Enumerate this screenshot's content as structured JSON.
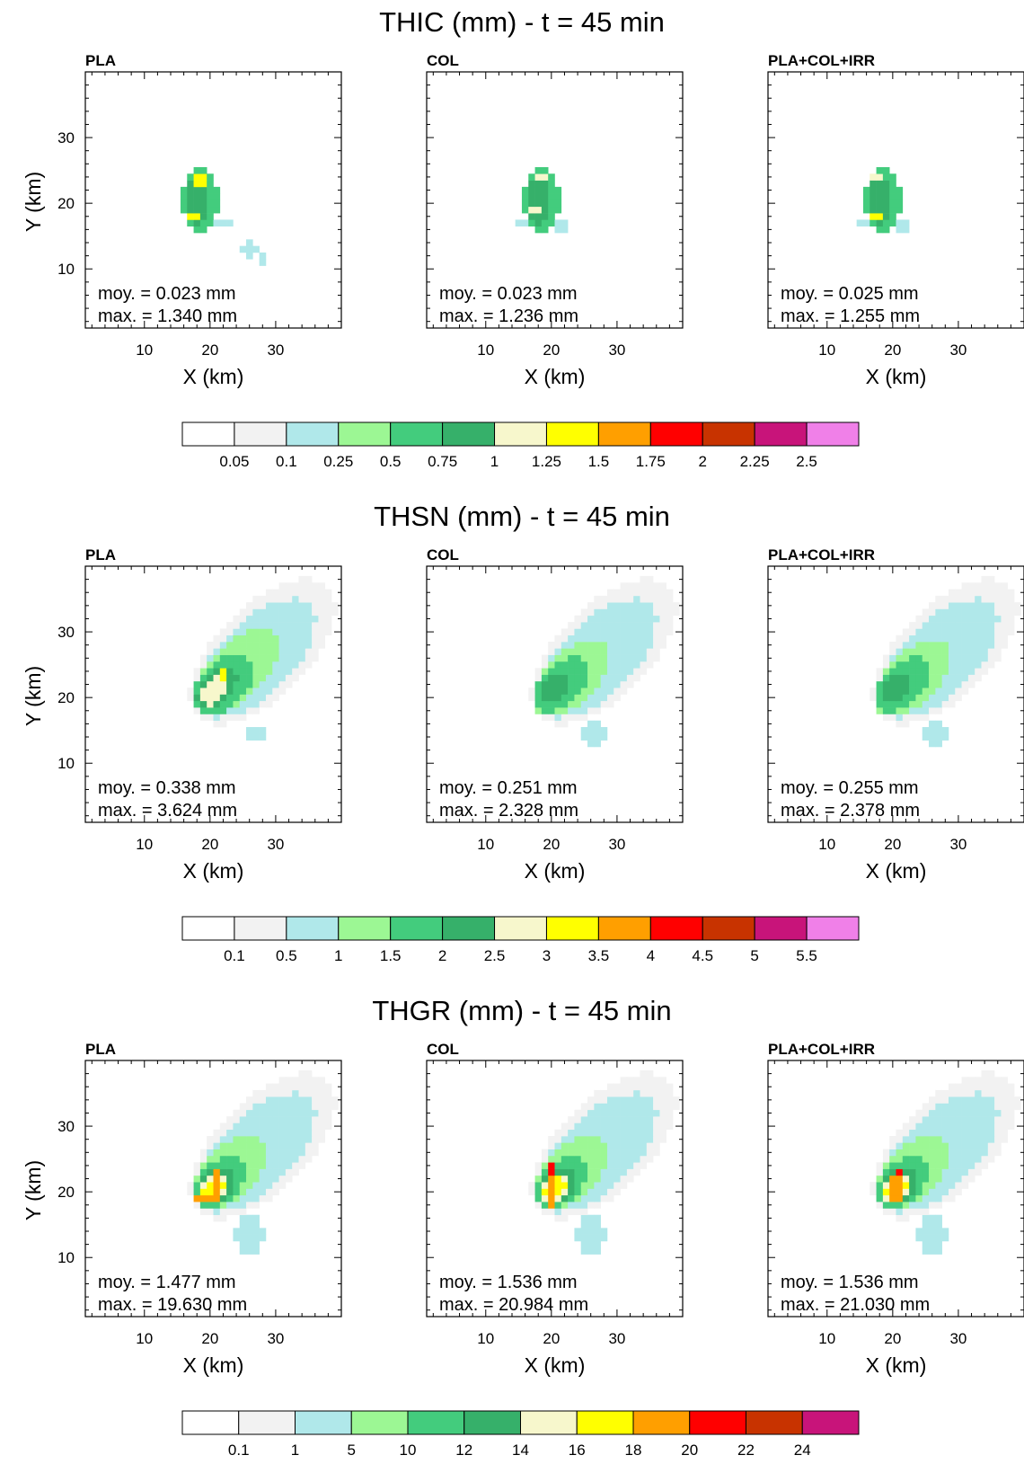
{
  "chart_data": [
    {
      "type": "heatmap",
      "title": "THIC (mm) - t = 45 min",
      "xlabel": "X (km)",
      "ylabel": "Y (km)",
      "xlim": [
        1,
        40
      ],
      "ylim": [
        1,
        40
      ],
      "xticks": [
        10,
        20,
        30
      ],
      "yticks": [
        10,
        20,
        30
      ],
      "colorbar": {
        "levels": [
          "0.05",
          "0.1",
          "0.25",
          "0.5",
          "0.75",
          "1",
          "1.25",
          "1.5",
          "1.75",
          "2",
          "2.25",
          "2.5"
        ],
        "colors": [
          "#ffffff",
          "#f2f2f2",
          "#b0e8ea",
          "#9cf794",
          "#43cc7d",
          "#36b06a",
          "#f7f7cc",
          "#ffff00",
          "#ff9f00",
          "#ff0000",
          "#c83300",
          "#c8147a",
          "#f080e8"
        ]
      },
      "panels": [
        {
          "label": "PLA",
          "mean": "moy. = 0.023 mm",
          "max": " max. = 1.340 mm",
          "blobs": [
            {
              "cx": 18.5,
              "cy": 20.5,
              "rx": 2.8,
              "ry": 5.0,
              "v": 4
            },
            {
              "cx": 18,
              "cy": 20.5,
              "rx": 1.8,
              "ry": 3.8,
              "v": 5
            },
            {
              "cx": 18.5,
              "cy": 23.5,
              "rx": 0.6,
              "ry": 1.0,
              "v": 7
            },
            {
              "cx": 17.5,
              "cy": 18.0,
              "rx": 0.6,
              "ry": 0.7,
              "v": 7
            },
            {
              "cx": 18.5,
              "cy": 18.8,
              "rx": 0.5,
              "ry": 0.5,
              "v": 6
            },
            {
              "cx": 22,
              "cy": 17.0,
              "rx": 1.0,
              "ry": 0.8,
              "v": 2
            },
            {
              "cx": 26,
              "cy": 13.0,
              "rx": 1.2,
              "ry": 1.5,
              "v": 2
            },
            {
              "cx": 28,
              "cy": 11.5,
              "rx": 0.6,
              "ry": 0.6,
              "v": 2
            }
          ]
        },
        {
          "label": "COL",
          "mean": "moy. = 0.023 mm",
          "max": " max. = 1.236 mm",
          "blobs": [
            {
              "cx": 18.5,
              "cy": 20.5,
              "rx": 2.7,
              "ry": 5.2,
              "v": 4
            },
            {
              "cx": 18,
              "cy": 20.5,
              "rx": 1.8,
              "ry": 4.0,
              "v": 5
            },
            {
              "cx": 18.5,
              "cy": 24.0,
              "rx": 0.6,
              "ry": 0.7,
              "v": 6
            },
            {
              "cx": 17.5,
              "cy": 19.0,
              "rx": 0.5,
              "ry": 0.5,
              "v": 6
            },
            {
              "cx": 15.5,
              "cy": 17.0,
              "rx": 0.8,
              "ry": 0.7,
              "v": 2
            },
            {
              "cx": 21.5,
              "cy": 16.5,
              "rx": 1.0,
              "ry": 0.8,
              "v": 2
            },
            {
              "cx": 26.5,
              "cy": 11.5,
              "rx": 0.6,
              "ry": 0.6,
              "v": 1
            }
          ]
        },
        {
          "label": "PLA+COL+IRR",
          "mean": "moy. = 0.025 mm",
          "max": " max. = 1.255 mm",
          "blobs": [
            {
              "cx": 18.5,
              "cy": 20.5,
              "rx": 2.8,
              "ry": 5.2,
              "v": 4
            },
            {
              "cx": 18,
              "cy": 20.5,
              "rx": 1.8,
              "ry": 4.0,
              "v": 5
            },
            {
              "cx": 17.5,
              "cy": 24.0,
              "rx": 0.8,
              "ry": 0.6,
              "v": 6
            },
            {
              "cx": 17.5,
              "cy": 18.0,
              "rx": 0.5,
              "ry": 0.6,
              "v": 7
            },
            {
              "cx": 15.5,
              "cy": 17.0,
              "rx": 0.8,
              "ry": 0.7,
              "v": 2
            },
            {
              "cx": 21.5,
              "cy": 16.5,
              "rx": 1.0,
              "ry": 0.8,
              "v": 2
            },
            {
              "cx": 26.5,
              "cy": 12.5,
              "rx": 0.6,
              "ry": 0.6,
              "v": 1
            }
          ]
        }
      ]
    },
    {
      "type": "heatmap",
      "title": "THSN (mm) - t = 45 min",
      "xlabel": "X (km)",
      "ylabel": "Y (km)",
      "xlim": [
        1,
        40
      ],
      "ylim": [
        1,
        40
      ],
      "xticks": [
        10,
        20,
        30
      ],
      "yticks": [
        10,
        20,
        30
      ],
      "colorbar": {
        "levels": [
          "0.1",
          "0.5",
          "1",
          "1.5",
          "2",
          "2.5",
          "3",
          "3.5",
          "4",
          "4.5",
          "5",
          "5.5"
        ],
        "colors": [
          "#ffffff",
          "#f2f2f2",
          "#b0e8ea",
          "#9cf794",
          "#43cc7d",
          "#36b06a",
          "#f7f7cc",
          "#ffff00",
          "#ff9f00",
          "#ff0000",
          "#c83300",
          "#c8147a",
          "#f080e8"
        ]
      },
      "panels": [
        {
          "label": "PLA",
          "mean": "moy. = 0.338 mm",
          "max": "  max. = 3.624 mm",
          "blobs": [
            {
              "cx": 28,
              "cy": 27,
              "rx": 14,
              "ry": 7,
              "rot": 45,
              "v": 1
            },
            {
              "cx": 27,
              "cy": 26,
              "rx": 11.5,
              "ry": 5.5,
              "rot": 45,
              "v": 2
            },
            {
              "cx": 24,
              "cy": 24,
              "rx": 8.0,
              "ry": 4.2,
              "rot": 45,
              "v": 3
            },
            {
              "cx": 22,
              "cy": 22,
              "rx": 5.5,
              "ry": 3.5,
              "rot": 45,
              "v": 4
            },
            {
              "cx": 21,
              "cy": 21.5,
              "rx": 3.6,
              "ry": 2.4,
              "rot": 45,
              "v": 5
            },
            {
              "cx": 20.5,
              "cy": 21,
              "rx": 2.4,
              "ry": 1.6,
              "rot": 45,
              "v": 6
            },
            {
              "cx": 22,
              "cy": 23.5,
              "rx": 0.7,
              "ry": 1.2,
              "v": 7
            },
            {
              "cx": 27,
              "cy": 14.5,
              "rx": 1.8,
              "ry": 1.4,
              "v": 2
            },
            {
              "cx": 27,
              "cy": 14.5,
              "rx": 0.8,
              "ry": 0.6,
              "v": 1
            }
          ]
        },
        {
          "label": "COL",
          "mean": "moy. = 0.251 mm",
          "max": " max. = 2.328 mm",
          "blobs": [
            {
              "cx": 28,
              "cy": 27,
              "rx": 14,
              "ry": 7,
              "rot": 45,
              "v": 1
            },
            {
              "cx": 27,
              "cy": 26,
              "rx": 11.5,
              "ry": 5.5,
              "rot": 45,
              "v": 2
            },
            {
              "cx": 23,
              "cy": 23,
              "rx": 7.5,
              "ry": 4.0,
              "rot": 45,
              "v": 3
            },
            {
              "cx": 21.5,
              "cy": 22,
              "rx": 5.0,
              "ry": 3.0,
              "rot": 45,
              "v": 4
            },
            {
              "cx": 20.5,
              "cy": 21.5,
              "rx": 2.8,
              "ry": 1.8,
              "rot": 45,
              "v": 5
            },
            {
              "cx": 26.5,
              "cy": 14.5,
              "rx": 2.0,
              "ry": 1.6,
              "v": 2
            },
            {
              "cx": 26.5,
              "cy": 14.5,
              "rx": 1.0,
              "ry": 0.6,
              "v": 1
            }
          ]
        },
        {
          "label": "PLA+COL+IRR",
          "mean": "moy. = 0.255 mm",
          "max": " max. = 2.378 mm",
          "blobs": [
            {
              "cx": 28,
              "cy": 27,
              "rx": 14,
              "ry": 7,
              "rot": 45,
              "v": 1
            },
            {
              "cx": 27,
              "cy": 26,
              "rx": 11.5,
              "ry": 5.5,
              "rot": 45,
              "v": 2
            },
            {
              "cx": 23,
              "cy": 23,
              "rx": 7.5,
              "ry": 4.0,
              "rot": 45,
              "v": 3
            },
            {
              "cx": 21.5,
              "cy": 22,
              "rx": 5.0,
              "ry": 3.0,
              "rot": 45,
              "v": 4
            },
            {
              "cx": 20.5,
              "cy": 21.5,
              "rx": 2.8,
              "ry": 1.8,
              "rot": 45,
              "v": 5
            },
            {
              "cx": 26.5,
              "cy": 14.5,
              "rx": 2.0,
              "ry": 1.6,
              "v": 2
            },
            {
              "cx": 26.5,
              "cy": 14.5,
              "rx": 1.0,
              "ry": 0.6,
              "v": 1
            }
          ]
        }
      ]
    },
    {
      "type": "heatmap",
      "title": "THGR (mm) - t = 45 min",
      "xlabel": "X (km)",
      "ylabel": "Y (km)",
      "xlim": [
        1,
        40
      ],
      "ylim": [
        1,
        40
      ],
      "xticks": [
        10,
        20,
        30
      ],
      "yticks": [
        10,
        20,
        30
      ],
      "colorbar": {
        "levels": [
          "0.1",
          "1",
          "5",
          "10",
          "12",
          "14",
          "16",
          "18",
          "20",
          "22",
          "24"
        ],
        "colors": [
          "#ffffff",
          "#f2f2f2",
          "#b0e8ea",
          "#9cf794",
          "#43cc7d",
          "#36b06a",
          "#f7f7cc",
          "#ffff00",
          "#ff9f00",
          "#ff0000",
          "#c83300",
          "#c8147a"
        ]
      },
      "panels": [
        {
          "label": "PLA",
          "mean": "moy. = 1.477 mm",
          "max": "max. = 19.630 mm",
          "blobs": [
            {
              "cx": 28,
              "cy": 27,
              "rx": 14,
              "ry": 7,
              "rot": 45,
              "v": 1
            },
            {
              "cx": 27,
              "cy": 26,
              "rx": 11.5,
              "ry": 5.5,
              "rot": 45,
              "v": 2
            },
            {
              "cx": 23,
              "cy": 23,
              "rx": 7.0,
              "ry": 3.8,
              "rot": 45,
              "v": 3
            },
            {
              "cx": 21.5,
              "cy": 21.5,
              "rx": 4.5,
              "ry": 3.2,
              "rot": 45,
              "v": 4
            },
            {
              "cx": 21,
              "cy": 21,
              "rx": 3.5,
              "ry": 2.4,
              "rot": 45,
              "v": 5
            },
            {
              "cx": 20.5,
              "cy": 20.5,
              "rx": 2.8,
              "ry": 1.8,
              "rot": 45,
              "v": 6
            },
            {
              "cx": 20.5,
              "cy": 20.5,
              "rx": 2.0,
              "ry": 1.2,
              "rot": 45,
              "v": 7
            },
            {
              "cx": 21,
              "cy": 21,
              "rx": 0.8,
              "ry": 2.8,
              "v": 8
            },
            {
              "cx": 19,
              "cy": 19,
              "rx": 1.0,
              "ry": 0.6,
              "v": 8
            },
            {
              "cx": 26,
              "cy": 13.5,
              "rx": 2.2,
              "ry": 3.0,
              "v": 2
            }
          ]
        },
        {
          "label": "COL",
          "mean": "moy. = 1.536 mm",
          "max": "max. = 20.984 mm",
          "blobs": [
            {
              "cx": 28,
              "cy": 27,
              "rx": 14,
              "ry": 7,
              "rot": 45,
              "v": 1
            },
            {
              "cx": 27,
              "cy": 26,
              "rx": 11.5,
              "ry": 5.5,
              "rot": 45,
              "v": 2
            },
            {
              "cx": 23,
              "cy": 23,
              "rx": 7.0,
              "ry": 3.8,
              "rot": 45,
              "v": 3
            },
            {
              "cx": 21.5,
              "cy": 21.5,
              "rx": 4.5,
              "ry": 3.2,
              "rot": 45,
              "v": 4
            },
            {
              "cx": 21,
              "cy": 21,
              "rx": 3.5,
              "ry": 2.4,
              "rot": 45,
              "v": 5
            },
            {
              "cx": 20.5,
              "cy": 20.5,
              "rx": 2.8,
              "ry": 1.8,
              "rot": 45,
              "v": 6
            },
            {
              "cx": 20.5,
              "cy": 20.5,
              "rx": 2.0,
              "ry": 1.2,
              "rot": 45,
              "v": 7
            },
            {
              "cx": 20,
              "cy": 20.5,
              "rx": 0.8,
              "ry": 2.8,
              "v": 8
            },
            {
              "cx": 20,
              "cy": 23.5,
              "rx": 0.5,
              "ry": 0.5,
              "v": 9
            },
            {
              "cx": 18.5,
              "cy": 18.5,
              "rx": 0.6,
              "ry": 0.5,
              "v": 9
            },
            {
              "cx": 26,
              "cy": 13.5,
              "rx": 2.2,
              "ry": 3.0,
              "v": 2
            }
          ]
        },
        {
          "label": "PLA+COL+IRR",
          "mean": "moy. = 1.536 mm",
          "max": "max. = 21.030 mm",
          "blobs": [
            {
              "cx": 28,
              "cy": 27,
              "rx": 14,
              "ry": 7,
              "rot": 45,
              "v": 1
            },
            {
              "cx": 27,
              "cy": 26,
              "rx": 11.5,
              "ry": 5.5,
              "rot": 45,
              "v": 2
            },
            {
              "cx": 23,
              "cy": 23,
              "rx": 7.0,
              "ry": 3.8,
              "rot": 45,
              "v": 3
            },
            {
              "cx": 21.5,
              "cy": 21.5,
              "rx": 4.5,
              "ry": 3.2,
              "rot": 45,
              "v": 4
            },
            {
              "cx": 21,
              "cy": 21,
              "rx": 3.5,
              "ry": 2.4,
              "rot": 45,
              "v": 5
            },
            {
              "cx": 20.5,
              "cy": 20.5,
              "rx": 2.8,
              "ry": 1.8,
              "rot": 45,
              "v": 6
            },
            {
              "cx": 20.5,
              "cy": 20.5,
              "rx": 2.0,
              "ry": 1.2,
              "rot": 45,
              "v": 7
            },
            {
              "cx": 20.5,
              "cy": 20.5,
              "rx": 0.8,
              "ry": 2.8,
              "v": 8
            },
            {
              "cx": 21,
              "cy": 23.0,
              "rx": 0.5,
              "ry": 0.6,
              "v": 9
            },
            {
              "cx": 18.5,
              "cy": 18.5,
              "rx": 0.6,
              "ry": 0.5,
              "v": 9
            },
            {
              "cx": 26,
              "cy": 13.5,
              "rx": 2.2,
              "ry": 3.0,
              "v": 2
            }
          ]
        }
      ]
    }
  ]
}
